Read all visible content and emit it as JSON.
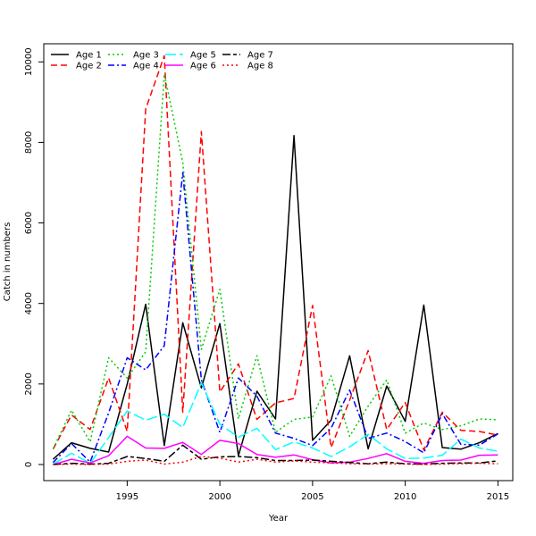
{
  "chart_data": {
    "type": "line",
    "title": "",
    "xlabel": "Year",
    "ylabel": "Catch in numbers",
    "xlim": [
      1990.5,
      2015.8
    ],
    "ylim": [
      -400,
      10450
    ],
    "xticks": [
      1995,
      2000,
      2005,
      2010,
      2015
    ],
    "yticks": [
      0,
      2000,
      4000,
      6000,
      8000,
      10000
    ],
    "grid": false,
    "legend_position": "top-left",
    "x": [
      1991,
      1992,
      1993,
      1994,
      1995,
      1996,
      1997,
      1998,
      1999,
      2000,
      2001,
      2002,
      2003,
      2004,
      2005,
      2006,
      2007,
      2008,
      2009,
      2010,
      2011,
      2012,
      2013,
      2014,
      2015
    ],
    "series": [
      {
        "name": "Age 1",
        "color": "#000000",
        "dash": "solid",
        "values": [
          130,
          540,
          400,
          310,
          2000,
          3980,
          470,
          3520,
          1900,
          3500,
          220,
          1820,
          1130,
          8170,
          600,
          1100,
          2700,
          390,
          1950,
          1070,
          3960,
          420,
          380,
          540,
          770
        ]
      },
      {
        "name": "Age 2",
        "color": "#ff0000",
        "dash": "dashed",
        "values": [
          380,
          1230,
          870,
          2150,
          820,
          8830,
          10150,
          1300,
          8270,
          1800,
          2500,
          1120,
          1530,
          1640,
          3950,
          420,
          1600,
          2830,
          870,
          1540,
          360,
          1300,
          850,
          820,
          730
        ]
      },
      {
        "name": "Age 3",
        "color": "#00cc00",
        "dash": "dotted",
        "values": [
          390,
          1350,
          560,
          2650,
          2150,
          2800,
          9700,
          7500,
          2860,
          4350,
          1130,
          2700,
          800,
          1120,
          1180,
          2200,
          700,
          1450,
          2100,
          780,
          1030,
          870,
          960,
          1130,
          1110
        ]
      },
      {
        "name": "Age 4",
        "color": "#0000ff",
        "dash": "dashdot",
        "values": [
          50,
          520,
          60,
          1280,
          2650,
          2350,
          2950,
          7250,
          2100,
          800,
          2150,
          1700,
          780,
          650,
          470,
          900,
          1850,
          650,
          780,
          570,
          290,
          1260,
          500,
          480,
          760
        ]
      },
      {
        "name": "Age 5",
        "color": "#00ffff",
        "dash": "longdash",
        "values": [
          10,
          280,
          30,
          670,
          1330,
          1100,
          1250,
          920,
          2030,
          1000,
          680,
          900,
          370,
          560,
          410,
          200,
          440,
          750,
          390,
          150,
          160,
          230,
          630,
          410,
          330
        ]
      },
      {
        "name": "Age 6",
        "color": "#ff00ff",
        "dash": "solid",
        "values": [
          0,
          130,
          40,
          220,
          700,
          410,
          400,
          550,
          250,
          600,
          520,
          250,
          180,
          240,
          120,
          40,
          60,
          150,
          270,
          80,
          30,
          100,
          110,
          230,
          240
        ]
      },
      {
        "name": "Age 7",
        "color": "#000000",
        "dash": "twodash",
        "values": [
          0,
          30,
          10,
          30,
          200,
          150,
          80,
          480,
          130,
          190,
          200,
          170,
          100,
          100,
          110,
          80,
          50,
          20,
          60,
          20,
          10,
          30,
          40,
          40,
          90
        ]
      },
      {
        "name": "Age 8",
        "color": "#ff0000",
        "dash": "dotted",
        "values": [
          0,
          10,
          0,
          10,
          80,
          110,
          10,
          60,
          200,
          160,
          60,
          130,
          60,
          90,
          60,
          40,
          20,
          10,
          20,
          10,
          0,
          10,
          20,
          30,
          20
        ]
      }
    ]
  }
}
